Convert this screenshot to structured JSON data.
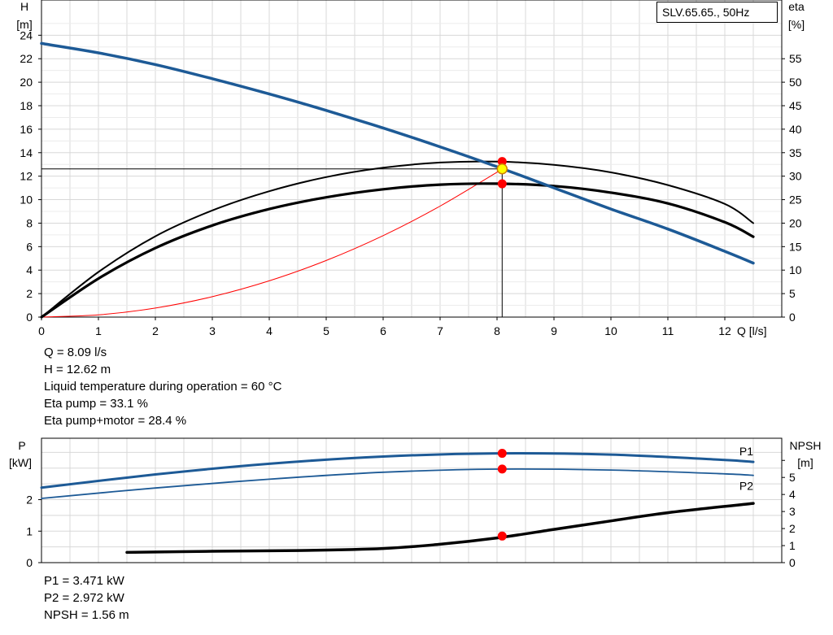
{
  "chart_data": [
    {
      "type": "line",
      "title": "SLV.65.65., 50Hz",
      "xlabel": "Q [l/s]",
      "ylabel": "H",
      "ylabel_unit": "[m]",
      "y2label": "eta",
      "y2label_unit": "[%]",
      "xlim": [
        0,
        13
      ],
      "ylim": [
        0,
        27
      ],
      "y2lim": [
        0,
        67.5
      ],
      "x_ticks": [
        0,
        1,
        2,
        3,
        4,
        5,
        6,
        7,
        8,
        9,
        10,
        11,
        12
      ],
      "y_ticks": [
        0,
        2,
        4,
        6,
        8,
        10,
        12,
        14,
        16,
        18,
        20,
        22,
        24
      ],
      "y2_ticks": [
        0,
        5,
        10,
        15,
        20,
        25,
        30,
        35,
        40,
        45,
        50,
        55
      ],
      "grid": true,
      "series": [
        {
          "role": "head",
          "axis": "left",
          "color": "#1d5a96",
          "x": [
            0,
            1,
            2,
            3,
            4,
            5,
            6,
            7,
            8,
            9,
            10,
            11,
            12,
            12.5
          ],
          "y": [
            23.3,
            22.5,
            21.5,
            20.3,
            19.0,
            17.6,
            16.1,
            14.5,
            12.8,
            11.0,
            9.2,
            7.5,
            5.6,
            4.6
          ]
        },
        {
          "role": "eta-pump",
          "axis": "right",
          "color": "#000000",
          "x": [
            0,
            1,
            2,
            3,
            4,
            5,
            6,
            7,
            8,
            9,
            10,
            11,
            12,
            12.5
          ],
          "y": [
            0,
            9.6,
            17.2,
            22.7,
            26.8,
            29.8,
            31.8,
            32.9,
            33.1,
            32.4,
            30.8,
            28.1,
            24.1,
            20.0
          ]
        },
        {
          "role": "eta-pump-motor",
          "axis": "right",
          "color": "#000000",
          "x": [
            0,
            1,
            2,
            3,
            4,
            5,
            6,
            7,
            8,
            9,
            10,
            11,
            12,
            12.5
          ],
          "y": [
            0,
            8.2,
            14.7,
            19.5,
            23.0,
            25.5,
            27.2,
            28.2,
            28.4,
            27.9,
            26.5,
            24.2,
            20.2,
            17.1
          ]
        },
        {
          "role": "system-curve",
          "axis": "left",
          "color": "#ff0000",
          "x": [
            0,
            1,
            2,
            3,
            4,
            5,
            6,
            7,
            8,
            8.09
          ],
          "y": [
            0,
            0.19,
            0.77,
            1.74,
            3.09,
            4.82,
            6.94,
            9.45,
            12.34,
            12.62
          ]
        }
      ],
      "operating_point": {
        "x": 8.09,
        "y": 12.62
      },
      "markers": [
        {
          "x": 8.09,
          "y": 13.25,
          "axis": "left",
          "color": "#ff0000"
        },
        {
          "x": 8.09,
          "y": 11.35,
          "axis": "left",
          "color": "#ff0000"
        },
        {
          "x": 8.09,
          "y": 12.62,
          "axis": "left",
          "color": "#ffff00"
        }
      ]
    },
    {
      "type": "line",
      "ylabel": "P",
      "ylabel_unit": "[kW]",
      "y2label": "NPSH",
      "y2label_unit": "[m]",
      "xlim": [
        0,
        13
      ],
      "ylim": [
        0,
        3.95
      ],
      "y2lim": [
        0,
        7.3
      ],
      "y_ticks": [
        0,
        1,
        2
      ],
      "y2_ticks": [
        0,
        1,
        2,
        3,
        4,
        5
      ],
      "grid": true,
      "series": [
        {
          "name": "P1",
          "axis": "left",
          "color": "#1d5a96",
          "x": [
            0,
            2,
            4,
            6,
            8,
            10,
            12,
            12.5
          ],
          "y": [
            2.38,
            2.8,
            3.14,
            3.37,
            3.47,
            3.43,
            3.26,
            3.2
          ]
        },
        {
          "name": "P2",
          "axis": "left",
          "color": "#1d5a96",
          "x": [
            0,
            2,
            4,
            6,
            8,
            10,
            12,
            12.5
          ],
          "y": [
            2.04,
            2.37,
            2.65,
            2.87,
            2.97,
            2.94,
            2.82,
            2.77
          ]
        },
        {
          "role": "npsh",
          "axis": "right",
          "color": "#000000",
          "x": [
            1.5,
            3,
            4.5,
            6,
            7,
            8,
            9,
            10,
            11,
            12.5
          ],
          "y": [
            0.6,
            0.67,
            0.71,
            0.83,
            1.08,
            1.45,
            1.95,
            2.45,
            2.93,
            3.48
          ]
        }
      ],
      "markers": [
        {
          "x": 8.09,
          "y": 3.471,
          "axis": "left",
          "color": "#ff0000"
        },
        {
          "x": 8.09,
          "y": 2.972,
          "axis": "left",
          "color": "#ff0000"
        },
        {
          "x": 8.09,
          "y": 1.56,
          "axis": "right",
          "color": "#ff0000"
        }
      ]
    }
  ],
  "info_top": [
    "Q = 8.09 l/s",
    "H = 12.62 m",
    "Liquid temperature during operation = 60 °C",
    "Eta pump = 33.1 %",
    "Eta pump+motor = 28.4 %"
  ],
  "info_bottom": [
    "P1 = 3.471 kW",
    "P2 = 2.972 kW",
    "NPSH = 1.56 m"
  ]
}
